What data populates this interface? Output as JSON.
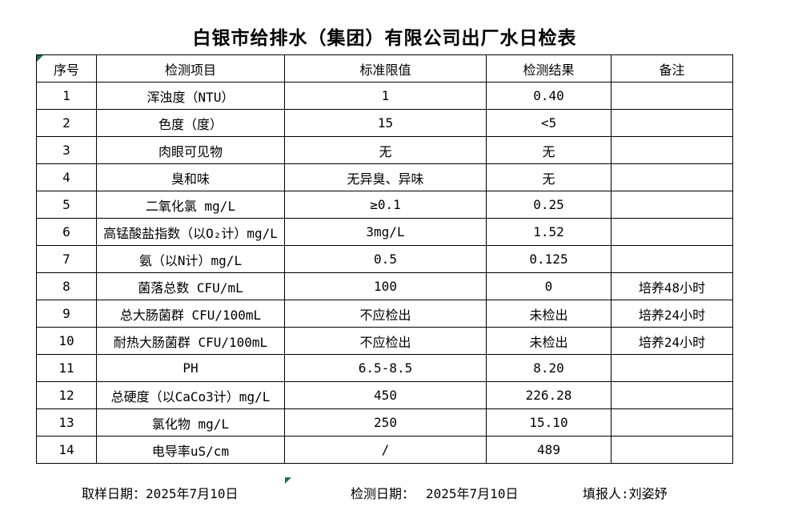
{
  "title": "白银市给排水（集团）有限公司出厂水日检表",
  "colors": {
    "background": "#ffffff",
    "border": "#000000",
    "text": "#000000",
    "error_indicator_green": "#1e7145"
  },
  "icons": {
    "error_indicator": "excel-green-corner-triangle"
  },
  "table": {
    "headers": [
      "序号",
      "检测项目",
      "标准限值",
      "检测结果",
      "备注"
    ],
    "rows": [
      {
        "no": "1",
        "item": "浑浊度（NTU）",
        "limit": "1",
        "result": "0.40",
        "remark": ""
      },
      {
        "no": "2",
        "item": "色度（度）",
        "limit": "15",
        "result": "<5",
        "remark": ""
      },
      {
        "no": "3",
        "item": "肉眼可见物",
        "limit": "无",
        "result": "无",
        "remark": ""
      },
      {
        "no": "4",
        "item": "臭和味",
        "limit": "无异臭、异味",
        "result": "无",
        "remark": ""
      },
      {
        "no": "5",
        "item": "二氧化氯 mg/L",
        "limit": "≥0.1",
        "result": "0.25",
        "remark": ""
      },
      {
        "no": "6",
        "item": "高锰酸盐指数（以O₂计）mg/L",
        "limit": "3mg/L",
        "result": "1.52",
        "remark": ""
      },
      {
        "no": "7",
        "item": "氨（以N计）mg/L",
        "limit": "0.5",
        "result": "0.125",
        "remark": ""
      },
      {
        "no": "8",
        "item": "菌落总数 CFU/mL",
        "limit": "100",
        "result": "0",
        "remark": "培养48小时"
      },
      {
        "no": "9",
        "item": "总大肠菌群 CFU/100mL",
        "limit": "不应检出",
        "result": "未检出",
        "remark": "培养24小时"
      },
      {
        "no": "10",
        "item": "耐热大肠菌群 CFU/100mL",
        "limit": "不应检出",
        "result": "未检出",
        "remark": "培养24小时"
      },
      {
        "no": "11",
        "item": "PH",
        "limit": "6.5-8.5",
        "result": "8.20",
        "remark": ""
      },
      {
        "no": "12",
        "item": "总硬度（以CaCo3计）mg/L",
        "limit": "450",
        "result": "226.28",
        "remark": ""
      },
      {
        "no": "13",
        "item": "氯化物 mg/L",
        "limit": "250",
        "result": "15.10",
        "remark": ""
      },
      {
        "no": "14",
        "item": "电导率uS/cm",
        "limit": "/",
        "result": "489",
        "remark": ""
      }
    ]
  },
  "footer": {
    "sampling_label": "取样日期：",
    "sampling_date": "2025年7月10日",
    "test_label": "检测日期：",
    "test_date": "2025年7月10日",
    "reporter_label": "填报人:",
    "reporter_name": "刘姿妤"
  }
}
